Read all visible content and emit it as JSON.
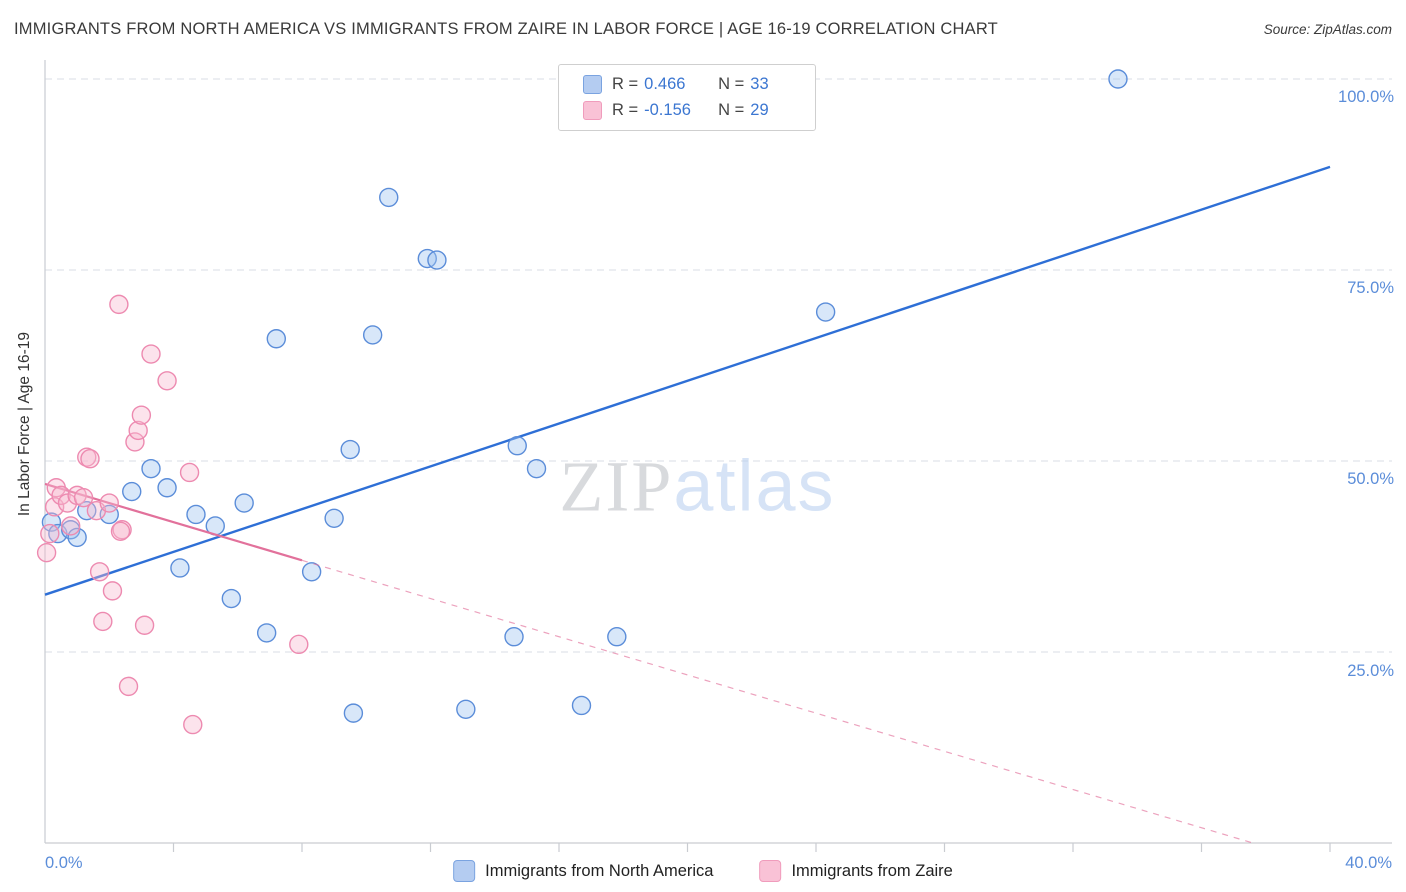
{
  "header": {
    "title": "IMMIGRANTS FROM NORTH AMERICA VS IMMIGRANTS FROM ZAIRE IN LABOR FORCE | AGE 16-19 CORRELATION CHART",
    "source": "Source: ZipAtlas.com"
  },
  "legend": {
    "rows": [
      {
        "r_label": "R =",
        "r_value": "0.466",
        "n_label": "N =",
        "n_value": "33"
      },
      {
        "r_label": "R =",
        "r_value": "-0.156",
        "n_label": "N =",
        "n_value": "29"
      }
    ]
  },
  "bottom_legend": {
    "items": [
      {
        "label": "Immigrants from North America"
      },
      {
        "label": "Immigrants from Zaire"
      }
    ]
  },
  "watermark": {
    "zip": "ZIP",
    "atlas": "atlas"
  },
  "chart_data": {
    "type": "scatter",
    "title": "Immigrants from North America vs Immigrants from Zaire in Labor Force | Age 16-19",
    "xlabel": "",
    "ylabel": "In Labor Force | Age 16-19",
    "xlim": [
      0,
      40
    ],
    "ylim": [
      0,
      105
    ],
    "grid": "horizontal-dashed",
    "x_tick_labels": [
      "0.0%",
      "40.0%"
    ],
    "y_tick_labels": [
      "100.0%",
      "75.0%",
      "50.0%",
      "25.0%"
    ],
    "y_gridlines": [
      25,
      50,
      75,
      100
    ],
    "x_minor_ticks": [
      4,
      8,
      12,
      16,
      20,
      24,
      28,
      32,
      36,
      40
    ],
    "series": [
      {
        "name": "Immigrants from North America",
        "r": 0.466,
        "n": 33,
        "fill": "#9ec3f0",
        "stroke": "#5b8dd9",
        "line_color": "#2e6fd6",
        "trend": {
          "x1": 0,
          "y1": 32.5,
          "x2": 40,
          "y2": 88.5
        },
        "points": [
          [
            0.2,
            42
          ],
          [
            0.4,
            40.5
          ],
          [
            0.8,
            41
          ],
          [
            1.0,
            40
          ],
          [
            1.3,
            43.5
          ],
          [
            2.0,
            43
          ],
          [
            2.7,
            46
          ],
          [
            3.3,
            49
          ],
          [
            3.8,
            46.5
          ],
          [
            4.2,
            36
          ],
          [
            4.7,
            43
          ],
          [
            5.3,
            41.5
          ],
          [
            5.8,
            32
          ],
          [
            6.2,
            44.5
          ],
          [
            6.9,
            27.5
          ],
          [
            7.2,
            66
          ],
          [
            8.3,
            35.5
          ],
          [
            9.0,
            42.5
          ],
          [
            9.5,
            51.5
          ],
          [
            9.6,
            17
          ],
          [
            10.2,
            66.5
          ],
          [
            10.7,
            84.5
          ],
          [
            11.9,
            76.5
          ],
          [
            12.2,
            76.3
          ],
          [
            13.1,
            17.5
          ],
          [
            14.6,
            27
          ],
          [
            14.7,
            52
          ],
          [
            15.3,
            49
          ],
          [
            16.7,
            18
          ],
          [
            17.8,
            27
          ],
          [
            20.7,
            100
          ],
          [
            24.3,
            69.5
          ],
          [
            33.4,
            100
          ]
        ]
      },
      {
        "name": "Immigrants from Zaire",
        "r": -0.156,
        "n": 29,
        "fill": "#f7b8d0",
        "stroke": "#ed8ab0",
        "line_color": "#e2719b",
        "trend": {
          "x1": 0,
          "y1": 47,
          "x2": 37.6,
          "y2": 0,
          "solid_until_x": 8
        },
        "points": [
          [
            0.05,
            38
          ],
          [
            0.15,
            40.5
          ],
          [
            0.3,
            44
          ],
          [
            0.35,
            46.5
          ],
          [
            0.5,
            45.5
          ],
          [
            0.7,
            44.5
          ],
          [
            0.8,
            41.5
          ],
          [
            1.0,
            45.5
          ],
          [
            1.2,
            45.2
          ],
          [
            1.3,
            50.5
          ],
          [
            1.4,
            50.3
          ],
          [
            1.6,
            43.5
          ],
          [
            1.7,
            35.5
          ],
          [
            1.8,
            29
          ],
          [
            2.0,
            44.5
          ],
          [
            2.1,
            33
          ],
          [
            2.3,
            70.5
          ],
          [
            2.4,
            41
          ],
          [
            2.35,
            40.8
          ],
          [
            2.6,
            20.5
          ],
          [
            2.8,
            52.5
          ],
          [
            2.9,
            54
          ],
          [
            3.0,
            56
          ],
          [
            3.1,
            28.5
          ],
          [
            3.3,
            64
          ],
          [
            3.8,
            60.5
          ],
          [
            4.5,
            48.5
          ],
          [
            4.6,
            15.5
          ],
          [
            7.9,
            26
          ]
        ]
      }
    ]
  }
}
